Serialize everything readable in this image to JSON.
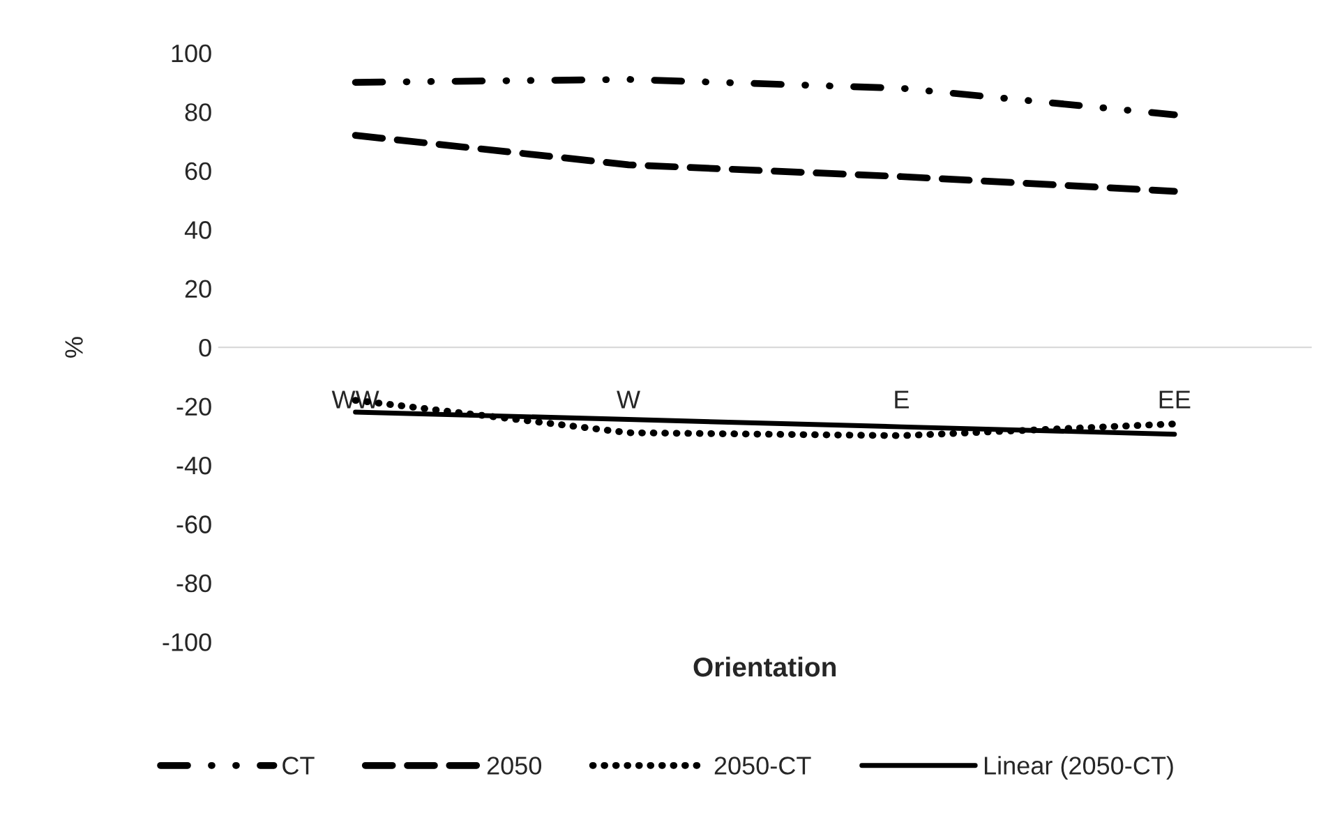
{
  "chart_data": {
    "type": "line",
    "xlabel": "Orientation",
    "ylabel": "%",
    "categories": [
      "WW",
      "W",
      "E",
      "EE"
    ],
    "series": [
      {
        "name": "CT",
        "color": "#000000",
        "line_style": "dashdot",
        "values": [
          90,
          91,
          88,
          79
        ]
      },
      {
        "name": "2050",
        "color": "#000000",
        "line_style": "dashed",
        "values": [
          72,
          62,
          58,
          53
        ]
      },
      {
        "name": "2050-CT",
        "color": "#000000",
        "line_style": "dotted",
        "values": [
          -18,
          -29,
          -30,
          -26
        ]
      },
      {
        "name": "Linear (2050-CT)",
        "color": "#000000",
        "line_style": "solid",
        "values": [
          -22,
          -24.5,
          -27,
          -29.5
        ]
      }
    ],
    "ylim": [
      -100,
      100
    ],
    "yticks": [
      -100,
      -80,
      -60,
      -40,
      -20,
      0,
      20,
      40,
      60,
      80,
      100
    ],
    "grid": false,
    "legend": "bottom",
    "marker": "none"
  }
}
